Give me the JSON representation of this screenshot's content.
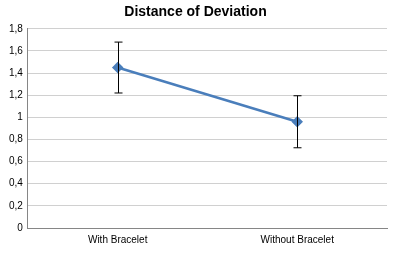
{
  "chart_data": {
    "type": "line",
    "title": "Distance of Deviation",
    "categories": [
      "With Bracelet",
      "Without Bracelet"
    ],
    "values": [
      1.45,
      0.96
    ],
    "errors": [
      0.23,
      0.235
    ],
    "color": "#4a7ebb",
    "marker": "diamond",
    "line_style": "solid",
    "ylim": [
      0,
      1.8
    ],
    "yticks": [
      0,
      {
        "value": 0.2,
        "label": "0,2"
      },
      {
        "value": 0.4,
        "label": "0,4"
      },
      {
        "value": 0.6,
        "label": "0,6"
      },
      {
        "value": 0.8,
        "label": "0,8"
      },
      1,
      {
        "value": 1.2,
        "label": "1,2"
      },
      {
        "value": 1.4,
        "label": "1,4"
      },
      {
        "value": 1.6,
        "label": "1,6"
      },
      {
        "value": 1.8,
        "label": "1,8"
      }
    ],
    "grid": true
  }
}
